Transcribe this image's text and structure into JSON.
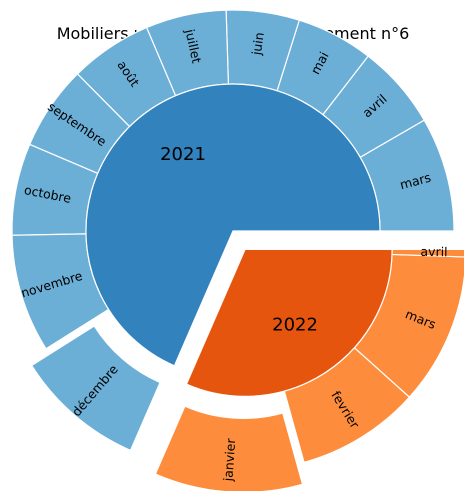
{
  "chart_data": {
    "type": "pie",
    "subtype": "sunburst",
    "title": "Mobiliers urbains dans l'arrondissement n°6",
    "colors": {
      "2021_inner": "#3182bd",
      "2021_outer": "#6baed6",
      "2022_inner": "#e6550d",
      "2022_outer": "#fd8d3c"
    },
    "years": [
      {
        "name": "2021",
        "exploded": false,
        "months": [
          {
            "label": "mars",
            "value": 12.2,
            "exploded": false
          },
          {
            "label": "avril",
            "value": 9.0,
            "exploded": false
          },
          {
            "label": "mai",
            "value": 8.2,
            "exploded": false
          },
          {
            "label": "juin",
            "value": 7.8,
            "exploded": false
          },
          {
            "label": "juillet",
            "value": 8.6,
            "exploded": false
          },
          {
            "label": "août",
            "value": 8.8,
            "exploded": false
          },
          {
            "label": "septembre",
            "value": 9.0,
            "exploded": false
          },
          {
            "label": "octobre",
            "value": 9.8,
            "exploded": false
          },
          {
            "label": "novembre",
            "value": 12.6,
            "exploded": false
          },
          {
            "label": "décembre",
            "value": 13.9,
            "exploded": true
          }
        ]
      },
      {
        "name": "2022",
        "exploded": true,
        "months": [
          {
            "label": "janvier",
            "value": 15.8,
            "exploded": true
          },
          {
            "label": "fevrier",
            "value": 13.2,
            "exploded": false
          },
          {
            "label": "mars",
            "value": 16.2,
            "exploded": false
          },
          {
            "label": "avril",
            "value": 0.8,
            "exploded": false
          }
        ]
      }
    ]
  }
}
